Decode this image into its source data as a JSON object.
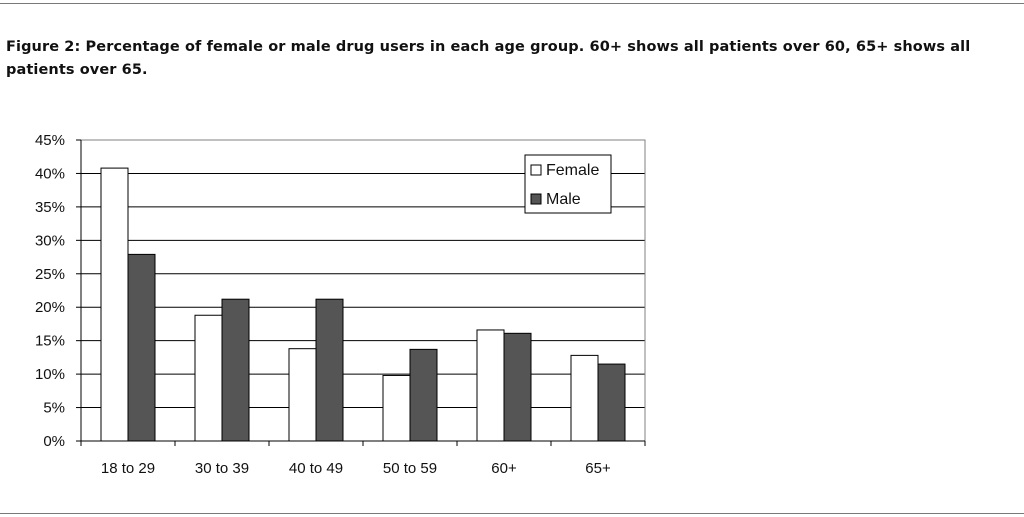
{
  "caption": "Figure 2: Percentage of female or male drug users in each age group. 60+ shows all patients over 60, 65+ shows all patients over 65.",
  "chart_data": {
    "type": "bar",
    "categories": [
      "18 to 29",
      "30 to 39",
      "40 to 49",
      "50 to 59",
      "60+",
      "65+"
    ],
    "series": [
      {
        "name": "Female",
        "values": [
          40.8,
          18.8,
          13.8,
          9.8,
          16.6,
          12.8
        ],
        "color": "#ffffff"
      },
      {
        "name": "Male",
        "values": [
          27.9,
          21.2,
          21.2,
          13.7,
          16.1,
          11.5
        ],
        "color": "#555555"
      }
    ],
    "ylim": [
      0,
      45
    ],
    "yticks": [
      "0%",
      "5%",
      "10%",
      "15%",
      "20%",
      "25%",
      "30%",
      "35%",
      "40%",
      "45%"
    ],
    "grid": true,
    "legend_position": "top-right",
    "title": "",
    "xlabel": "",
    "ylabel": ""
  }
}
